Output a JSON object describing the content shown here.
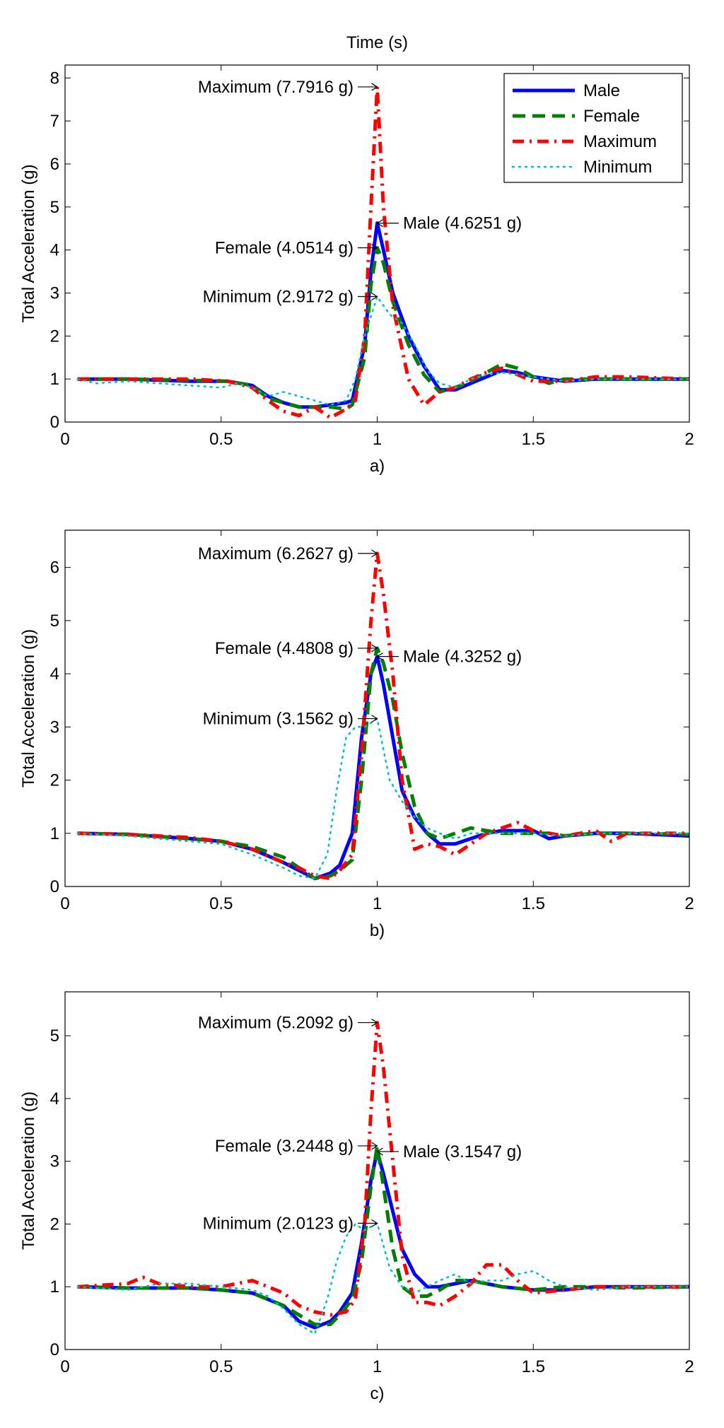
{
  "chart_data": [
    {
      "type": "line",
      "title": "Time (s)",
      "xlabel": "a)",
      "ylabel": "Total Acceleration (g)",
      "xlim": [
        0,
        2
      ],
      "ylim": [
        0,
        8.3
      ],
      "xticks": [
        "0",
        "0.5",
        "1",
        "1.5",
        "2"
      ],
      "yticks": [
        "0",
        "1",
        "2",
        "3",
        "4",
        "5",
        "6",
        "7",
        "8"
      ],
      "legend": {
        "placement": "top-right",
        "entries": [
          "Male",
          "Female",
          "Maximum",
          "Minimum"
        ]
      },
      "series": [
        {
          "name": "Male",
          "color": "#0000ff",
          "style": "solid",
          "x": [
            0.04,
            0.2,
            0.4,
            0.52,
            0.6,
            0.65,
            0.7,
            0.75,
            0.8,
            0.85,
            0.9,
            0.92,
            0.96,
            0.98,
            1.0,
            1.02,
            1.05,
            1.1,
            1.15,
            1.2,
            1.25,
            1.3,
            1.35,
            1.4,
            1.45,
            1.5,
            1.6,
            1.7,
            1.8,
            2.0
          ],
          "y": [
            1.0,
            1.0,
            0.95,
            0.95,
            0.85,
            0.6,
            0.45,
            0.35,
            0.35,
            0.4,
            0.45,
            0.5,
            1.8,
            3.5,
            4.6251,
            4.0,
            3.0,
            2.0,
            1.3,
            0.75,
            0.75,
            0.9,
            1.05,
            1.2,
            1.15,
            1.05,
            0.95,
            1.0,
            1.0,
            1.0
          ]
        },
        {
          "name": "Female",
          "color": "#008000",
          "style": "dashed",
          "x": [
            0.04,
            0.2,
            0.4,
            0.52,
            0.6,
            0.65,
            0.7,
            0.75,
            0.8,
            0.85,
            0.9,
            0.92,
            0.96,
            0.98,
            1.0,
            1.02,
            1.05,
            1.1,
            1.15,
            1.2,
            1.25,
            1.3,
            1.35,
            1.4,
            1.45,
            1.5,
            1.55,
            1.6,
            1.7,
            1.8,
            2.0
          ],
          "y": [
            1.0,
            1.0,
            0.97,
            0.95,
            0.85,
            0.55,
            0.45,
            0.35,
            0.35,
            0.35,
            0.3,
            0.4,
            1.5,
            3.2,
            4.0514,
            3.7,
            2.8,
            1.8,
            1.1,
            0.7,
            0.8,
            0.95,
            1.15,
            1.35,
            1.25,
            1.05,
            0.9,
            1.0,
            1.0,
            1.0,
            1.0
          ]
        },
        {
          "name": "Maximum",
          "color": "#ff0000",
          "style": "dashdot",
          "x": [
            0.04,
            0.2,
            0.4,
            0.52,
            0.6,
            0.65,
            0.7,
            0.75,
            0.8,
            0.85,
            0.9,
            0.93,
            0.96,
            0.98,
            1.0,
            1.02,
            1.05,
            1.1,
            1.15,
            1.2,
            1.25,
            1.3,
            1.35,
            1.4,
            1.45,
            1.5,
            1.6,
            1.7,
            1.8,
            2.0
          ],
          "y": [
            1.0,
            1.0,
            1.0,
            0.95,
            0.8,
            0.5,
            0.25,
            0.15,
            0.35,
            0.1,
            0.3,
            0.5,
            2.0,
            5.0,
            7.7916,
            5.0,
            2.7,
            1.0,
            0.4,
            0.7,
            0.8,
            1.0,
            1.15,
            1.25,
            1.1,
            0.95,
            0.95,
            1.05,
            1.05,
            1.0
          ]
        },
        {
          "name": "Minimum",
          "color": "#00bfbf",
          "style": "dotted",
          "x": [
            0.04,
            0.1,
            0.2,
            0.3,
            0.4,
            0.5,
            0.55,
            0.6,
            0.65,
            0.7,
            0.75,
            0.8,
            0.85,
            0.9,
            0.93,
            0.96,
            1.0,
            1.04,
            1.08,
            1.12,
            1.16,
            1.2,
            1.25,
            1.3,
            1.35,
            1.4,
            1.5,
            1.6,
            1.7,
            1.8,
            2.0
          ],
          "y": [
            1.0,
            0.9,
            0.95,
            0.9,
            0.85,
            0.8,
            0.9,
            0.8,
            0.6,
            0.7,
            0.6,
            0.5,
            0.4,
            0.5,
            1.0,
            2.0,
            2.9172,
            2.5,
            2.3,
            1.8,
            1.2,
            0.9,
            0.8,
            1.0,
            1.1,
            1.15,
            1.05,
            0.95,
            1.0,
            1.0,
            1.0
          ]
        }
      ],
      "annotations": [
        {
          "text": "Maximum (7.7916 g)",
          "x": 1.0,
          "y": 7.7916,
          "side": "left"
        },
        {
          "text": "Male (4.6251 g)",
          "x": 1.0,
          "y": 4.6251,
          "side": "right"
        },
        {
          "text": "Female (4.0514 g)",
          "x": 1.0,
          "y": 4.0514,
          "side": "left"
        },
        {
          "text": "Minimum (2.9172 g)",
          "x": 1.0,
          "y": 2.9172,
          "side": "left"
        }
      ]
    },
    {
      "type": "line",
      "title": "",
      "xlabel": "b)",
      "ylabel": "Total Acceleration (g)",
      "xlim": [
        0,
        2
      ],
      "ylim": [
        0,
        6.7
      ],
      "xticks": [
        "0",
        "0.5",
        "1",
        "1.5",
        "2"
      ],
      "yticks": [
        "0",
        "1",
        "2",
        "3",
        "4",
        "5",
        "6"
      ],
      "legend": null,
      "series": [
        {
          "name": "Male",
          "color": "#0000ff",
          "style": "solid",
          "x": [
            0.04,
            0.2,
            0.4,
            0.5,
            0.6,
            0.7,
            0.75,
            0.8,
            0.85,
            0.88,
            0.92,
            0.95,
            0.98,
            1.0,
            1.02,
            1.05,
            1.08,
            1.12,
            1.16,
            1.2,
            1.25,
            1.3,
            1.35,
            1.4,
            1.5,
            1.55,
            1.6,
            1.7,
            1.8,
            2.0
          ],
          "y": [
            1.0,
            0.98,
            0.9,
            0.85,
            0.7,
            0.45,
            0.3,
            0.15,
            0.25,
            0.4,
            1.0,
            2.8,
            4.0,
            4.3252,
            3.8,
            2.8,
            1.8,
            1.3,
            1.0,
            0.8,
            0.8,
            0.9,
            1.0,
            1.05,
            1.05,
            0.9,
            0.95,
            1.0,
            1.0,
            0.95
          ]
        },
        {
          "name": "Female",
          "color": "#008000",
          "style": "dashed",
          "x": [
            0.04,
            0.2,
            0.4,
            0.5,
            0.6,
            0.7,
            0.75,
            0.8,
            0.85,
            0.88,
            0.92,
            0.95,
            0.98,
            1.0,
            1.02,
            1.05,
            1.08,
            1.12,
            1.16,
            1.2,
            1.25,
            1.3,
            1.35,
            1.4,
            1.5,
            1.55,
            1.6,
            1.7,
            1.8,
            2.0
          ],
          "y": [
            1.0,
            0.98,
            0.9,
            0.85,
            0.75,
            0.55,
            0.35,
            0.15,
            0.2,
            0.3,
            0.5,
            2.0,
            4.0,
            4.4808,
            4.2,
            3.5,
            2.5,
            1.5,
            1.0,
            0.9,
            1.0,
            1.1,
            1.05,
            1.0,
            1.0,
            1.0,
            0.95,
            1.0,
            1.0,
            0.98
          ]
        },
        {
          "name": "Maximum",
          "color": "#ff0000",
          "style": "dashdot",
          "x": [
            0.04,
            0.2,
            0.4,
            0.5,
            0.6,
            0.7,
            0.75,
            0.8,
            0.85,
            0.88,
            0.92,
            0.95,
            0.98,
            1.0,
            1.02,
            1.05,
            1.08,
            1.12,
            1.16,
            1.2,
            1.25,
            1.3,
            1.35,
            1.4,
            1.45,
            1.5,
            1.6,
            1.65,
            1.7,
            1.75,
            1.8,
            2.0
          ],
          "y": [
            1.0,
            0.98,
            0.92,
            0.85,
            0.7,
            0.45,
            0.35,
            0.2,
            0.15,
            0.3,
            0.6,
            2.5,
            5.0,
            6.2627,
            5.5,
            4.0,
            2.0,
            0.7,
            0.8,
            0.75,
            0.6,
            0.8,
            1.0,
            1.1,
            1.2,
            1.05,
            0.95,
            1.0,
            1.05,
            0.85,
            1.0,
            1.0
          ]
        },
        {
          "name": "Minimum",
          "color": "#00bfbf",
          "style": "dotted",
          "x": [
            0.04,
            0.2,
            0.4,
            0.5,
            0.6,
            0.7,
            0.75,
            0.8,
            0.84,
            0.87,
            0.9,
            0.93,
            0.96,
            1.0,
            1.04,
            1.08,
            1.12,
            1.16,
            1.2,
            1.25,
            1.3,
            1.35,
            1.4,
            1.5,
            1.6,
            1.7,
            1.8,
            2.0
          ],
          "y": [
            1.0,
            0.95,
            0.85,
            0.8,
            0.6,
            0.35,
            0.2,
            0.15,
            0.6,
            1.8,
            2.8,
            3.0,
            3.0,
            3.1562,
            2.0,
            1.6,
            1.3,
            1.1,
            1.0,
            0.9,
            1.0,
            1.0,
            1.0,
            1.0,
            0.95,
            1.0,
            1.0,
            1.0
          ]
        }
      ],
      "annotations": [
        {
          "text": "Maximum (6.2627 g)",
          "x": 1.0,
          "y": 6.2627,
          "side": "left"
        },
        {
          "text": "Female (4.4808 g)",
          "x": 1.0,
          "y": 4.4808,
          "side": "left"
        },
        {
          "text": "Male (4.3252 g)",
          "x": 1.0,
          "y": 4.3252,
          "side": "right"
        },
        {
          "text": "Minimum (3.1562 g)",
          "x": 1.0,
          "y": 3.1562,
          "side": "left"
        }
      ]
    },
    {
      "type": "line",
      "title": "",
      "xlabel": "c)",
      "ylabel": "Total Acceleration (g)",
      "xlim": [
        0,
        2
      ],
      "ylim": [
        0,
        5.7
      ],
      "xticks": [
        "0",
        "0.5",
        "1",
        "1.5",
        "2"
      ],
      "yticks": [
        "0",
        "1",
        "2",
        "3",
        "4",
        "5"
      ],
      "legend": null,
      "series": [
        {
          "name": "Male",
          "color": "#0000ff",
          "style": "solid",
          "x": [
            0.04,
            0.2,
            0.4,
            0.5,
            0.6,
            0.7,
            0.75,
            0.8,
            0.85,
            0.88,
            0.92,
            0.95,
            0.98,
            1.0,
            1.02,
            1.05,
            1.08,
            1.12,
            1.16,
            1.2,
            1.25,
            1.3,
            1.35,
            1.4,
            1.5,
            1.6,
            1.7,
            1.8,
            1.9,
            2.0
          ],
          "y": [
            1.0,
            0.98,
            0.98,
            0.95,
            0.9,
            0.7,
            0.45,
            0.35,
            0.45,
            0.6,
            0.9,
            1.7,
            2.7,
            3.1547,
            2.8,
            2.2,
            1.6,
            1.2,
            1.0,
            1.0,
            1.05,
            1.1,
            1.05,
            1.0,
            0.95,
            0.95,
            1.0,
            1.0,
            1.0,
            1.0
          ]
        },
        {
          "name": "Female",
          "color": "#008000",
          "style": "dashed",
          "x": [
            0.04,
            0.2,
            0.4,
            0.5,
            0.6,
            0.65,
            0.7,
            0.75,
            0.8,
            0.85,
            0.88,
            0.92,
            0.95,
            0.98,
            1.0,
            1.02,
            1.05,
            1.08,
            1.12,
            1.16,
            1.2,
            1.25,
            1.3,
            1.35,
            1.4,
            1.5,
            1.6,
            1.7,
            1.8,
            2.0
          ],
          "y": [
            1.0,
            0.98,
            0.98,
            0.95,
            0.9,
            0.8,
            0.7,
            0.55,
            0.4,
            0.4,
            0.55,
            0.8,
            1.4,
            2.6,
            3.2448,
            2.6,
            1.6,
            1.0,
            0.85,
            0.85,
            0.95,
            1.1,
            1.1,
            1.05,
            1.0,
            0.95,
            1.0,
            1.0,
            0.98,
            1.0
          ]
        },
        {
          "name": "Maximum",
          "color": "#ff0000",
          "style": "dashdot",
          "x": [
            0.04,
            0.2,
            0.25,
            0.3,
            0.4,
            0.5,
            0.6,
            0.65,
            0.7,
            0.75,
            0.8,
            0.85,
            0.9,
            0.93,
            0.96,
            0.98,
            1.0,
            1.02,
            1.05,
            1.08,
            1.12,
            1.16,
            1.2,
            1.25,
            1.3,
            1.35,
            1.4,
            1.45,
            1.5,
            1.6,
            1.7,
            1.8,
            2.0
          ],
          "y": [
            1.0,
            1.05,
            1.15,
            1.05,
            1.0,
            1.0,
            1.1,
            1.0,
            0.9,
            0.7,
            0.6,
            0.55,
            0.6,
            0.8,
            2.0,
            3.8,
            5.2092,
            4.5,
            3.0,
            1.5,
            0.75,
            0.75,
            0.7,
            0.85,
            1.05,
            1.35,
            1.35,
            1.1,
            0.9,
            0.95,
            1.0,
            1.0,
            1.0
          ]
        },
        {
          "name": "Minimum",
          "color": "#00bfbf",
          "style": "dotted",
          "x": [
            0.04,
            0.2,
            0.3,
            0.4,
            0.5,
            0.6,
            0.65,
            0.7,
            0.75,
            0.8,
            0.84,
            0.87,
            0.9,
            0.93,
            0.96,
            1.0,
            1.04,
            1.08,
            1.12,
            1.16,
            1.2,
            1.25,
            1.3,
            1.35,
            1.4,
            1.45,
            1.5,
            1.55,
            1.6,
            1.7,
            1.8,
            2.0
          ],
          "y": [
            1.0,
            0.95,
            1.05,
            1.05,
            1.0,
            0.95,
            0.85,
            0.65,
            0.4,
            0.25,
            0.8,
            1.4,
            1.8,
            2.0,
            1.9,
            2.0123,
            1.3,
            1.0,
            0.9,
            1.0,
            1.1,
            1.2,
            1.05,
            1.1,
            1.1,
            1.2,
            1.25,
            1.1,
            1.0,
            0.95,
            1.0,
            1.0
          ]
        }
      ],
      "annotations": [
        {
          "text": "Maximum (5.2092 g)",
          "x": 1.0,
          "y": 5.2092,
          "side": "left"
        },
        {
          "text": "Female (3.2448 g)",
          "x": 1.0,
          "y": 3.2448,
          "side": "left"
        },
        {
          "text": "Male (3.1547 g)",
          "x": 1.0,
          "y": 3.1547,
          "side": "right"
        },
        {
          "text": "Minimum (2.0123 g)",
          "x": 1.0,
          "y": 2.0123,
          "side": "left"
        }
      ]
    }
  ]
}
